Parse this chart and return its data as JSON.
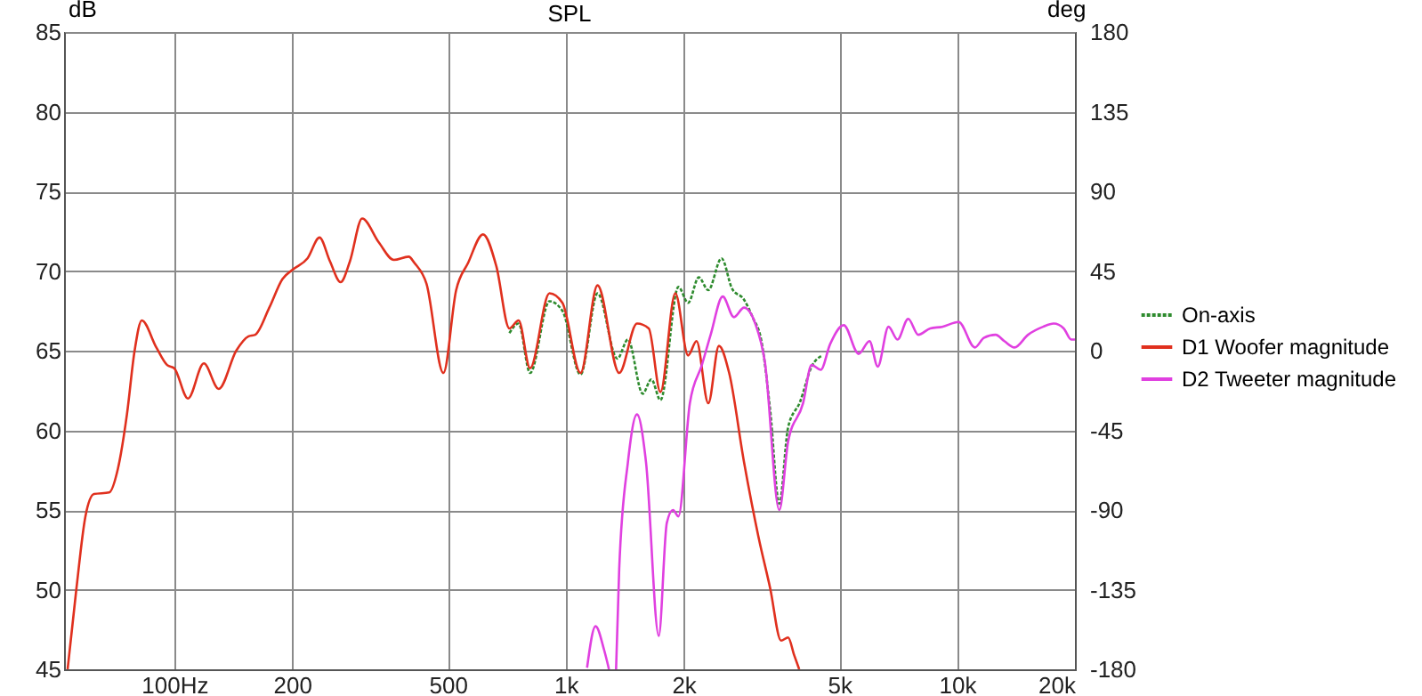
{
  "chart_data": {
    "type": "line",
    "title": "SPL",
    "ylabel": "dB",
    "y2label": "deg",
    "xlim": [
      52.3,
      20000
    ],
    "ylim": [
      45,
      85
    ],
    "y2lim": [
      -180,
      180
    ],
    "xticks": [
      {
        "value": 100,
        "label": "100Hz"
      },
      200,
      500,
      {
        "value": 1000,
        "label": "1k"
      },
      {
        "value": 2000,
        "label": "2k"
      },
      {
        "value": 5000,
        "label": "5k"
      },
      {
        "value": 10000,
        "label": "10k"
      },
      {
        "value": 20000,
        "label": "20k"
      }
    ],
    "yticks": [
      45,
      50,
      55,
      60,
      65,
      70,
      75,
      80,
      85
    ],
    "y2ticks": [
      -180,
      -135,
      -90,
      -45,
      0,
      45,
      90,
      135,
      180
    ],
    "log": "x",
    "grid": true,
    "legend": "right",
    "series": [
      {
        "name": "On-axis",
        "color": "#2e8b2e",
        "line_style": "dashed",
        "x": [
          718,
          758,
          811,
          909,
          981,
          1091,
          1206,
          1355,
          1442,
          1573,
          1655,
          1746,
          1941,
          2055,
          2187,
          2314,
          2501,
          2660,
          2855,
          3003,
          3163,
          3329,
          3513,
          3701,
          3971,
          4249,
          4526
        ],
        "values": [
          66.1,
          66.7,
          63.6,
          68.1,
          67.5,
          63.5,
          68.6,
          64.5,
          65.7,
          62.3,
          63.2,
          61.9,
          69,
          68,
          69.6,
          68.8,
          70.8,
          68.9,
          68.2,
          67.1,
          65.6,
          61.3,
          55.4,
          60.2,
          61.8,
          64,
          64.7
        ]
      },
      {
        "name": "D1 Woofer magnitude",
        "color": "#e0301e",
        "line_style": "solid",
        "x": [
          53.4,
          56.2,
          59.3,
          62.4,
          68.2,
          71.8,
          75.7,
          79.2,
          82.6,
          90,
          95.9,
          100,
          108.4,
          119,
          129.9,
          144,
          154.8,
          161,
          174.9,
          189,
          201,
          219,
          235,
          250,
          266,
          281,
          302,
          333,
          364,
          397,
          411,
          441,
          487,
          525,
          563,
          615,
          665,
          718,
          758,
          811,
          909,
          981,
          1091,
          1206,
          1370,
          1521,
          1630,
          1746,
          1906,
          2055,
          2159,
          2314,
          2463,
          2616,
          2855,
          3109,
          3329,
          3550,
          3701,
          3833,
          3950
        ],
        "values": [
          45,
          50,
          54.6,
          56,
          56.1,
          57.6,
          61,
          65,
          66.9,
          65.2,
          64.1,
          63.9,
          62,
          64.2,
          62.6,
          65,
          65.9,
          66,
          67.7,
          69.5,
          70.1,
          70.8,
          72.1,
          70.6,
          69.3,
          70.6,
          73.3,
          71.8,
          70.7,
          70.9,
          70.5,
          69.2,
          63.6,
          68.8,
          70.5,
          72.3,
          70.3,
          66.4,
          66.9,
          63.9,
          68.6,
          68,
          63.6,
          69.1,
          63.6,
          66.7,
          66.4,
          62.4,
          68.6,
          64.7,
          65.6,
          61.7,
          65.3,
          63.6,
          58,
          53.3,
          50.1,
          46.8,
          47,
          45.9,
          45
        ]
      },
      {
        "name": "D2 Tweeter magnitude",
        "color": "#e040e0",
        "line_style": "solid",
        "x": [
          1134,
          1192,
          1254,
          1290,
          1320,
          1345,
          1370,
          1442,
          1521,
          1604,
          1729,
          1813,
          1880,
          1941,
          2076,
          2228,
          2346,
          2519,
          2690,
          2855,
          3050,
          3227,
          3513,
          3701,
          4040,
          4249,
          4483,
          4735,
          5133,
          5604,
          5971,
          6270,
          6679,
          7040,
          7500,
          7960,
          8540,
          9160,
          10090,
          11100,
          11700,
          12540,
          13200,
          14010,
          15180,
          16580,
          17650,
          18720,
          19570,
          20000
        ],
        "values": [
          45.1,
          47.7,
          46.2,
          45,
          null,
          45,
          51.3,
          58,
          61,
          58,
          47.1,
          54.2,
          55,
          54.6,
          61.7,
          64.1,
          66,
          68.4,
          67.1,
          67.7,
          66.7,
          64.3,
          55,
          59.3,
          61.7,
          64.1,
          63.8,
          65.4,
          66.6,
          64.8,
          65.6,
          64,
          66.5,
          65.7,
          67,
          66,
          66.4,
          66.5,
          66.8,
          65.2,
          65.8,
          66,
          65.6,
          65.2,
          66,
          66.5,
          66.7,
          66.4,
          65.7,
          65.7
        ]
      }
    ]
  }
}
